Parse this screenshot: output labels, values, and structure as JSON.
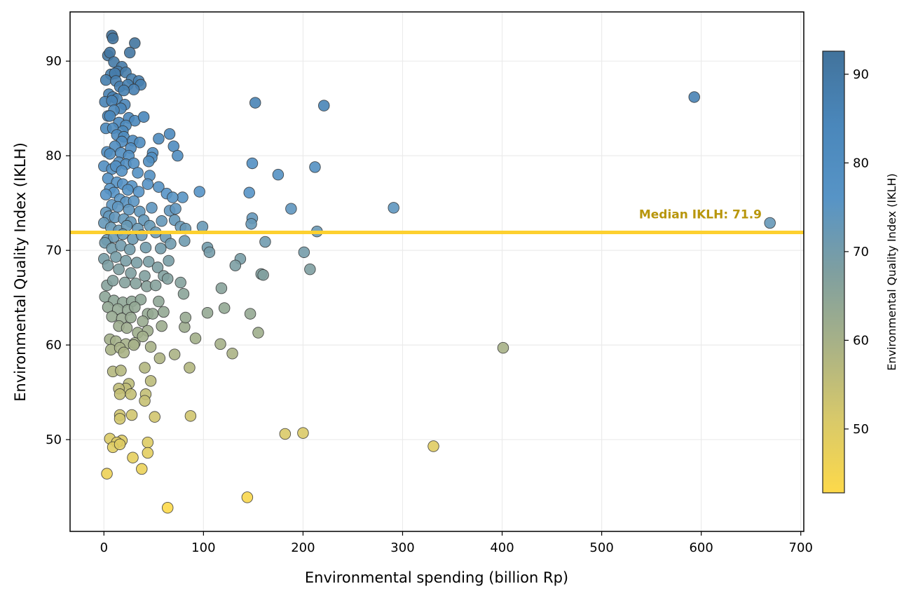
{
  "chart_data": {
    "type": "scatter",
    "title": "",
    "xlabel": "Environmental spending (billion Rp)",
    "ylabel": "Environmental Quality Index (IKLH)",
    "xlim": [
      -34,
      703
    ],
    "ylim": [
      40.3,
      95.2
    ],
    "xticks": [
      0,
      100,
      200,
      300,
      400,
      500,
      600,
      700
    ],
    "yticks": [
      50,
      60,
      70,
      80,
      90
    ],
    "grid": true,
    "colorbar": {
      "label": "Environmental Quality Index (IKLH)",
      "range": [
        42.8,
        92.6
      ],
      "ticks": [
        50,
        60,
        70,
        80,
        90
      ],
      "colors": [
        "#fdd94a",
        "#d8c96a",
        "#a9b286",
        "#7f9fa0",
        "#5794c6",
        "#4a87bb",
        "#42739c"
      ],
      "placement": "right"
    },
    "median_line": {
      "value": 71.9,
      "label": "Median IKLH: 71.9",
      "color": "#fdd02f",
      "label_color": "#b8960c"
    },
    "points": [
      [
        8,
        92.7
      ],
      [
        9,
        92.4
      ],
      [
        31,
        91.9
      ],
      [
        26,
        90.9
      ],
      [
        4,
        90.6
      ],
      [
        6,
        90.9
      ],
      [
        10,
        89.9
      ],
      [
        18,
        89.4
      ],
      [
        14,
        88.9
      ],
      [
        7,
        88.6
      ],
      [
        11,
        88.7
      ],
      [
        22,
        88.8
      ],
      [
        28,
        88.1
      ],
      [
        2,
        88.0
      ],
      [
        12,
        87.9
      ],
      [
        16,
        87.3
      ],
      [
        24,
        87.5
      ],
      [
        35,
        87.9
      ],
      [
        37,
        87.5
      ],
      [
        30,
        87.0
      ],
      [
        20,
        86.9
      ],
      [
        5,
        86.5
      ],
      [
        9,
        86.2
      ],
      [
        13,
        86.0
      ],
      [
        21,
        85.4
      ],
      [
        1,
        85.7
      ],
      [
        8,
        85.8
      ],
      [
        17,
        85.0
      ],
      [
        10,
        84.8
      ],
      [
        4,
        84.2
      ],
      [
        25,
        84.0
      ],
      [
        31,
        83.7
      ],
      [
        40,
        84.1
      ],
      [
        6,
        84.2
      ],
      [
        15,
        83.5
      ],
      [
        22,
        83.2
      ],
      [
        2,
        82.9
      ],
      [
        9,
        82.9
      ],
      [
        19,
        82.6
      ],
      [
        13,
        82.2
      ],
      [
        20,
        82.0
      ],
      [
        29,
        81.6
      ],
      [
        18,
        81.5
      ],
      [
        36,
        81.4
      ],
      [
        55,
        81.8
      ],
      [
        66,
        82.3
      ],
      [
        11,
        81.0
      ],
      [
        27,
        80.8
      ],
      [
        3,
        80.4
      ],
      [
        6,
        80.2
      ],
      [
        17,
        80.3
      ],
      [
        25,
        80.0
      ],
      [
        49,
        80.3
      ],
      [
        48,
        79.8
      ],
      [
        70,
        81.0
      ],
      [
        74,
        80.0
      ],
      [
        0,
        78.9
      ],
      [
        15,
        79.3
      ],
      [
        22,
        79.1
      ],
      [
        30,
        79.2
      ],
      [
        45,
        79.4
      ],
      [
        8,
        78.6
      ],
      [
        12,
        78.9
      ],
      [
        18,
        78.4
      ],
      [
        34,
        78.2
      ],
      [
        46,
        77.9
      ],
      [
        4,
        77.6
      ],
      [
        13,
        77.2
      ],
      [
        19,
        77.0
      ],
      [
        28,
        76.8
      ],
      [
        44,
        77.0
      ],
      [
        6,
        76.5
      ],
      [
        10,
        76.1
      ],
      [
        24,
        76.4
      ],
      [
        35,
        76.2
      ],
      [
        55,
        76.7
      ],
      [
        63,
        76.0
      ],
      [
        79,
        75.6
      ],
      [
        96,
        76.2
      ],
      [
        146,
        76.1
      ],
      [
        2,
        75.9
      ],
      [
        16,
        75.4
      ],
      [
        22,
        75.1
      ],
      [
        30,
        75.2
      ],
      [
        69,
        75.6
      ],
      [
        8,
        74.8
      ],
      [
        14,
        74.6
      ],
      [
        25,
        74.3
      ],
      [
        36,
        74.1
      ],
      [
        48,
        74.5
      ],
      [
        66,
        74.2
      ],
      [
        72,
        74.4
      ],
      [
        2,
        74.0
      ],
      [
        5,
        73.6
      ],
      [
        11,
        73.5
      ],
      [
        20,
        73.3
      ],
      [
        27,
        73.0
      ],
      [
        40,
        73.2
      ],
      [
        58,
        73.1
      ],
      [
        71,
        73.2
      ],
      [
        0,
        72.9
      ],
      [
        7,
        72.4
      ],
      [
        15,
        72.1
      ],
      [
        23,
        72.6
      ],
      [
        34,
        72.3
      ],
      [
        46,
        72.6
      ],
      [
        77,
        72.5
      ],
      [
        82,
        72.3
      ],
      [
        99,
        72.5
      ],
      [
        149,
        73.4
      ],
      [
        148,
        72.8
      ],
      [
        188,
        74.4
      ],
      [
        291,
        74.5
      ],
      [
        214,
        72.0
      ],
      [
        669,
        72.9
      ],
      [
        593,
        86.2
      ],
      [
        152,
        85.6
      ],
      [
        221,
        85.3
      ],
      [
        149,
        79.2
      ],
      [
        212,
        78.8
      ],
      [
        175,
        78.0
      ],
      [
        3,
        71.1
      ],
      [
        10,
        71.4
      ],
      [
        19,
        71.7
      ],
      [
        29,
        71.2
      ],
      [
        38,
        71.6
      ],
      [
        52,
        71.9
      ],
      [
        62,
        71.4
      ],
      [
        1,
        70.8
      ],
      [
        8,
        70.2
      ],
      [
        17,
        70.5
      ],
      [
        26,
        70.1
      ],
      [
        42,
        70.3
      ],
      [
        57,
        70.2
      ],
      [
        67,
        70.7
      ],
      [
        81,
        71.0
      ],
      [
        104,
        70.3
      ],
      [
        106,
        69.8
      ],
      [
        137,
        69.1
      ],
      [
        132,
        68.4
      ],
      [
        162,
        70.9
      ],
      [
        201,
        69.8
      ],
      [
        207,
        68.0
      ],
      [
        158,
        67.5
      ],
      [
        160,
        67.4
      ],
      [
        0,
        69.1
      ],
      [
        12,
        69.3
      ],
      [
        22,
        68.9
      ],
      [
        33,
        68.7
      ],
      [
        45,
        68.8
      ],
      [
        54,
        68.2
      ],
      [
        65,
        68.9
      ],
      [
        4,
        68.4
      ],
      [
        15,
        68.0
      ],
      [
        27,
        67.6
      ],
      [
        41,
        67.3
      ],
      [
        60,
        67.3
      ],
      [
        77,
        66.6
      ],
      [
        3,
        66.3
      ],
      [
        9,
        66.8
      ],
      [
        21,
        66.6
      ],
      [
        32,
        66.5
      ],
      [
        43,
        66.2
      ],
      [
        52,
        66.3
      ],
      [
        64,
        67.0
      ],
      [
        118,
        66.0
      ],
      [
        80,
        65.4
      ],
      [
        1,
        65.1
      ],
      [
        10,
        64.7
      ],
      [
        19,
        64.5
      ],
      [
        28,
        64.6
      ],
      [
        37,
        64.8
      ],
      [
        55,
        64.6
      ],
      [
        4,
        64.0
      ],
      [
        14,
        63.8
      ],
      [
        24,
        63.7
      ],
      [
        31,
        64.0
      ],
      [
        44,
        63.3
      ],
      [
        60,
        63.5
      ],
      [
        8,
        63.0
      ],
      [
        18,
        62.8
      ],
      [
        27,
        62.9
      ],
      [
        39,
        62.5
      ],
      [
        49,
        63.3
      ],
      [
        104,
        63.4
      ],
      [
        121,
        63.9
      ],
      [
        147,
        63.3
      ],
      [
        15,
        62.0
      ],
      [
        23,
        61.8
      ],
      [
        34,
        61.3
      ],
      [
        44,
        61.5
      ],
      [
        58,
        62.0
      ],
      [
        81,
        61.9
      ],
      [
        82,
        62.9
      ],
      [
        155,
        61.3
      ],
      [
        6,
        60.6
      ],
      [
        12,
        60.4
      ],
      [
        22,
        60.1
      ],
      [
        31,
        60.2
      ],
      [
        39,
        60.9
      ],
      [
        92,
        60.7
      ],
      [
        117,
        60.1
      ],
      [
        129,
        59.1
      ],
      [
        7,
        59.5
      ],
      [
        16,
        59.7
      ],
      [
        20,
        59.2
      ],
      [
        30,
        60.0
      ],
      [
        47,
        59.8
      ],
      [
        71,
        59.0
      ],
      [
        56,
        58.6
      ],
      [
        401,
        59.7
      ],
      [
        41,
        57.6
      ],
      [
        86,
        57.6
      ],
      [
        9,
        57.2
      ],
      [
        17,
        57.3
      ],
      [
        25,
        55.9
      ],
      [
        22,
        55.4
      ],
      [
        15,
        55.4
      ],
      [
        27,
        54.8
      ],
      [
        16,
        54.8
      ],
      [
        42,
        54.8
      ],
      [
        41,
        54.1
      ],
      [
        47,
        56.2
      ],
      [
        16,
        52.6
      ],
      [
        28,
        52.6
      ],
      [
        51,
        52.4
      ],
      [
        87,
        52.5
      ],
      [
        16,
        52.2
      ],
      [
        6,
        50.1
      ],
      [
        18,
        49.9
      ],
      [
        13,
        49.7
      ],
      [
        44,
        49.7
      ],
      [
        9,
        49.2
      ],
      [
        16,
        49.5
      ],
      [
        44,
        48.6
      ],
      [
        29,
        48.1
      ],
      [
        182,
        50.6
      ],
      [
        200,
        50.7
      ],
      [
        331,
        49.3
      ],
      [
        38,
        46.9
      ],
      [
        3,
        46.4
      ],
      [
        64,
        42.8
      ],
      [
        144,
        43.9
      ]
    ]
  }
}
